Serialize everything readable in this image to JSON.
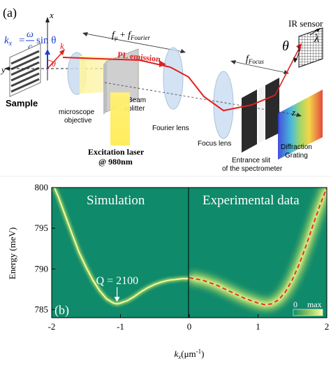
{
  "panel_a": {
    "label": "(a)",
    "kx_formula": {
      "lhs": "k",
      "sub": "x",
      "eq": "=",
      "num": "ω",
      "den": "c",
      "rhs": "sin θ"
    },
    "axis_x": "x",
    "axis_y": "y",
    "axis_z": "z",
    "k_vector": "k",
    "theta": "θ",
    "sample": "Sample",
    "objective": [
      "microscope",
      "objective"
    ],
    "beam_splitter": [
      "Beam",
      "splitter"
    ],
    "excitation": [
      "Excitation laser",
      "@ 980nm"
    ],
    "pl_emission": "PL emission",
    "f_sum": {
      "f1": "f",
      "sub1": "μ",
      "plus": "+ ",
      "f2": "f",
      "sub2": "Fourier"
    },
    "f_focus": {
      "f": "f",
      "sub": "Focus"
    },
    "fourier_lens": "Fourier lens",
    "focus_lens": "Focus lens",
    "slit": [
      "Entrance slit",
      "of the spectrometer"
    ],
    "grating": [
      "Diffraction",
      "Grating"
    ],
    "ir_sensor": "IR sensor",
    "sensor_theta": "θ",
    "sensor_lambda": "λ"
  },
  "panel_b": {
    "label": "(b)",
    "sim_title": "Simulation",
    "exp_title": "Experimental data",
    "q_label": "Q = 2100",
    "colorbar_min": "0",
    "colorbar_max": "max",
    "colors": {
      "bg": "#0f8a6a",
      "band": "#f4f97a",
      "dashed": "#e8252a"
    }
  },
  "chart_data": {
    "type": "heatmap",
    "title": "",
    "xlabel": "kx(μm-1)",
    "ylabel": "Energy (meV)",
    "xlim": [
      -2,
      2
    ],
    "ylim": [
      784,
      800
    ],
    "x_ticks": [
      "-2",
      "-1",
      "0",
      "1",
      "2"
    ],
    "y_ticks": [
      "785",
      "790",
      "795",
      "800"
    ],
    "series": [
      {
        "name": "Simulation",
        "x": [
          -1.96,
          -1.9,
          -1.8,
          -1.7,
          -1.6,
          -1.5,
          -1.4,
          -1.3,
          -1.2,
          -1.1,
          -1.05,
          -1.0,
          -0.9,
          -0.8,
          -0.7,
          -0.6,
          -0.5,
          -0.4,
          -0.3,
          -0.2,
          -0.1,
          0.0
        ],
        "y": [
          800.0,
          798.8,
          796.5,
          794.2,
          792.0,
          790.2,
          788.6,
          787.3,
          786.3,
          785.8,
          785.7,
          785.8,
          786.1,
          786.6,
          787.2,
          787.7,
          788.1,
          788.4,
          788.6,
          788.7,
          788.8,
          788.8
        ]
      },
      {
        "name": "Experimental data",
        "x": [
          0.0,
          0.2,
          0.4,
          0.6,
          0.8,
          1.0,
          1.1,
          1.2,
          1.3,
          1.4,
          1.5,
          1.6,
          1.7,
          1.8,
          1.9,
          2.0
        ],
        "y": [
          788.9,
          788.6,
          788.0,
          787.2,
          786.4,
          785.8,
          785.6,
          785.7,
          786.2,
          787.2,
          788.7,
          790.6,
          792.9,
          795.4,
          797.8,
          800.0
        ]
      }
    ],
    "annotation": {
      "text": "Q = 2100",
      "x": -1.05,
      "y": 785.7
    },
    "colorbar": [
      "0",
      "max"
    ]
  }
}
